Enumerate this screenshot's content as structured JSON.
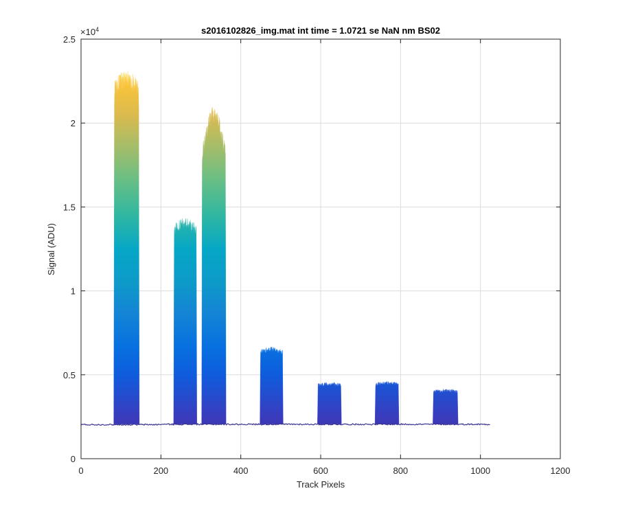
{
  "chart_data": {
    "type": "area",
    "title": "s2016102826_img.mat int time = 1.0721 se  NaN nm BS02",
    "xlabel": "Track Pixels",
    "ylabel": "Signal (ADU)",
    "xlim": [
      0,
      1200
    ],
    "ylim": [
      0,
      25000
    ],
    "y_exponent_base": "×10",
    "y_exponent_power": "4",
    "x_ticks": [
      0,
      200,
      400,
      600,
      800,
      1000,
      1200
    ],
    "x_tick_labels": [
      "0",
      "200",
      "400",
      "600",
      "800",
      "1000",
      "1200"
    ],
    "y_ticks": [
      0,
      5000,
      10000,
      15000,
      20000,
      25000
    ],
    "y_tick_labels": [
      "0",
      "0.5",
      "1",
      "1.5",
      "2",
      "2.5"
    ],
    "grid": true,
    "colormap": "parula",
    "baseline": 2050,
    "x_end": 1024,
    "baseline_color": "#3b3391",
    "grid_color": "#dcdcdc",
    "bands": [
      {
        "x_start": 82,
        "x_end": 146,
        "peak": 22600,
        "shape": "flat"
      },
      {
        "x_start": 232,
        "x_end": 290,
        "peak": 14000,
        "shape": "flat"
      },
      {
        "x_start": 302,
        "x_end": 363,
        "peak": 20500,
        "shape": "dome"
      },
      {
        "x_start": 448,
        "x_end": 506,
        "peak": 6500,
        "shape": "flat"
      },
      {
        "x_start": 592,
        "x_end": 652,
        "peak": 4450,
        "shape": "flat"
      },
      {
        "x_start": 736,
        "x_end": 796,
        "peak": 4500,
        "shape": "flat"
      },
      {
        "x_start": 881,
        "x_end": 944,
        "peak": 4050,
        "shape": "flat"
      }
    ]
  }
}
